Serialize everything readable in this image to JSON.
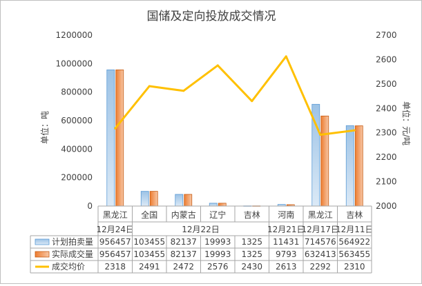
{
  "chart_data": {
    "type": "bar",
    "title": "国储及定向投放成交情况",
    "ylabel_left": "单位：吨",
    "ylabel_right": "单位：元/吨",
    "ylim_left": [
      0,
      1200000
    ],
    "yticks_left": [
      "0",
      "200000",
      "400000",
      "600000",
      "800000",
      "1000000",
      "1200000"
    ],
    "ylim_right": [
      2000,
      2700
    ],
    "yticks_right": [
      "2000",
      "2100",
      "2200",
      "2300",
      "2400",
      "2500",
      "2600",
      "2700"
    ],
    "categories": [
      "黑龙江",
      "全国",
      "内蒙古",
      "辽宁",
      "吉林",
      "河南",
      "黑龙江",
      "吉林"
    ],
    "date_groups": [
      {
        "label": "12月24日",
        "span": 1
      },
      {
        "label": "12月22日",
        "span": 4
      },
      {
        "label": "12月21日",
        "span": 1
      },
      {
        "label": "12月17日",
        "span": 1
      },
      {
        "label": "12月11日",
        "span": 1
      }
    ],
    "series": [
      {
        "name": "计划拍卖量",
        "type": "bar",
        "axis": "left",
        "color": "#9dc3e6",
        "values": [
          956457,
          103455,
          82137,
          19993,
          1325,
          11431,
          714576,
          564922
        ]
      },
      {
        "name": "实际成交量",
        "type": "bar",
        "axis": "left",
        "color": "#ed7d31",
        "values": [
          956457,
          103455,
          82137,
          19993,
          1325,
          9793,
          632413,
          563455
        ]
      },
      {
        "name": "成交均价",
        "type": "line",
        "axis": "right",
        "color": "#ffc000",
        "values": [
          2318,
          2491,
          2472,
          2576,
          2430,
          2613,
          2292,
          2310
        ]
      }
    ]
  }
}
